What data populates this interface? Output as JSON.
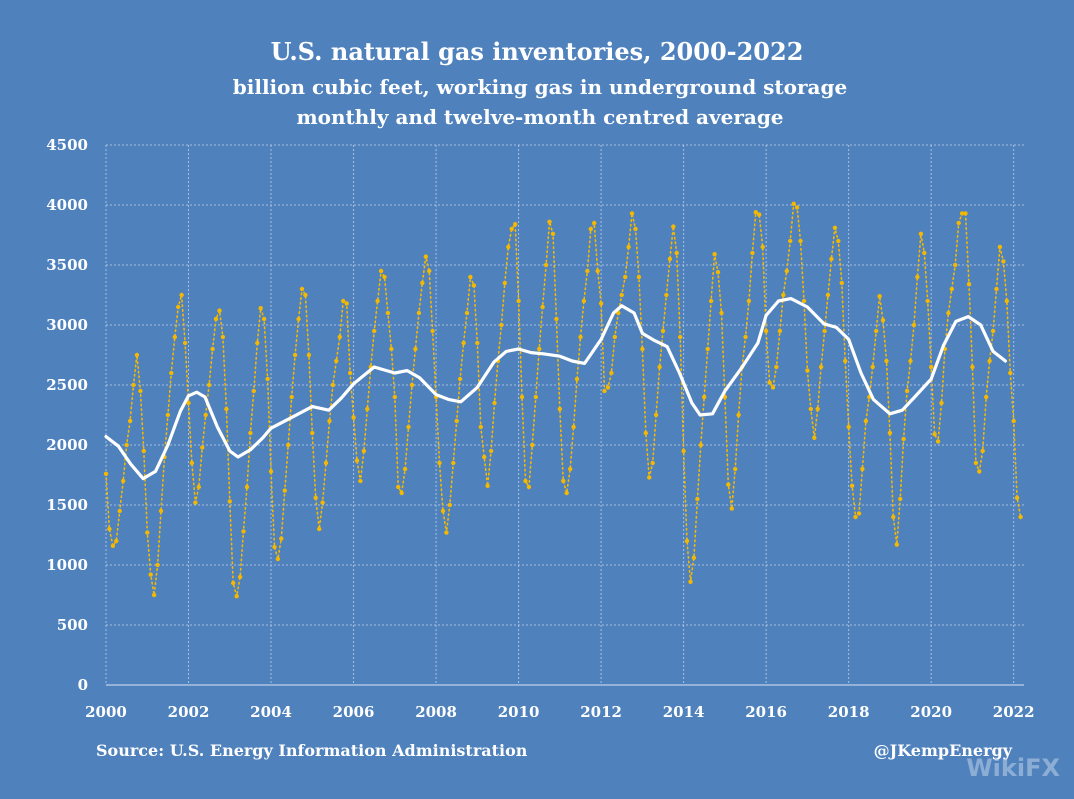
{
  "chart_data": {
    "type": "line",
    "title": "U.S. natural gas inventories, 2000-2022",
    "subtitle_lines": [
      "billion cubic feet, working gas in underground storage",
      "monthly and twelve-month centred average"
    ],
    "xlim": [
      2000,
      2022.25
    ],
    "ylim": [
      0,
      4500
    ],
    "x_ticks": [
      "2000",
      "2002",
      "2004",
      "2006",
      "2008",
      "2010",
      "2012",
      "2014",
      "2016",
      "2018",
      "2020",
      "2022"
    ],
    "y_ticks": [
      "0",
      "500",
      "1000",
      "1500",
      "2000",
      "2500",
      "3000",
      "3500",
      "4000",
      "4500"
    ],
    "grid": true,
    "legend": "none",
    "series": [
      {
        "style": "dotted",
        "color": "#f5b800",
        "x": [
          2000.0,
          2000.083,
          2000.167,
          2000.25,
          2000.333,
          2000.417,
          2000.5,
          2000.583,
          2000.667,
          2000.75,
          2000.833,
          2000.917,
          2001.0,
          2001.083,
          2001.167,
          2001.25,
          2001.333,
          2001.417,
          2001.5,
          2001.583,
          2001.667,
          2001.75,
          2001.833,
          2001.917,
          2002.0,
          2002.083,
          2002.167,
          2002.25,
          2002.333,
          2002.417,
          2002.5,
          2002.583,
          2002.667,
          2002.75,
          2002.833,
          2002.917,
          2003.0,
          2003.083,
          2003.167,
          2003.25,
          2003.333,
          2003.417,
          2003.5,
          2003.583,
          2003.667,
          2003.75,
          2003.833,
          2003.917,
          2004.0,
          2004.083,
          2004.167,
          2004.25,
          2004.333,
          2004.417,
          2004.5,
          2004.583,
          2004.667,
          2004.75,
          2004.833,
          2004.917,
          2005.0,
          2005.083,
          2005.167,
          2005.25,
          2005.333,
          2005.417,
          2005.5,
          2005.583,
          2005.667,
          2005.75,
          2005.833,
          2005.917,
          2006.0,
          2006.083,
          2006.167,
          2006.25,
          2006.333,
          2006.417,
          2006.5,
          2006.583,
          2006.667,
          2006.75,
          2006.833,
          2006.917,
          2007.0,
          2007.083,
          2007.167,
          2007.25,
          2007.333,
          2007.417,
          2007.5,
          2007.583,
          2007.667,
          2007.75,
          2007.833,
          2007.917,
          2008.0,
          2008.083,
          2008.167,
          2008.25,
          2008.333,
          2008.417,
          2008.5,
          2008.583,
          2008.667,
          2008.75,
          2008.833,
          2008.917,
          2009.0,
          2009.083,
          2009.167,
          2009.25,
          2009.333,
          2009.417,
          2009.5,
          2009.583,
          2009.667,
          2009.75,
          2009.833,
          2009.917,
          2010.0,
          2010.083,
          2010.167,
          2010.25,
          2010.333,
          2010.417,
          2010.5,
          2010.583,
          2010.667,
          2010.75,
          2010.833,
          2010.917,
          2011.0,
          2011.083,
          2011.167,
          2011.25,
          2011.333,
          2011.417,
          2011.5,
          2011.583,
          2011.667,
          2011.75,
          2011.833,
          2011.917,
          2012.0,
          2012.083,
          2012.167,
          2012.25,
          2012.333,
          2012.417,
          2012.5,
          2012.583,
          2012.667,
          2012.75,
          2012.833,
          2012.917,
          2013.0,
          2013.083,
          2013.167,
          2013.25,
          2013.333,
          2013.417,
          2013.5,
          2013.583,
          2013.667,
          2013.75,
          2013.833,
          2013.917,
          2014.0,
          2014.083,
          2014.167,
          2014.25,
          2014.333,
          2014.417,
          2014.5,
          2014.583,
          2014.667,
          2014.75,
          2014.833,
          2014.917,
          2015.0,
          2015.083,
          2015.167,
          2015.25,
          2015.333,
          2015.417,
          2015.5,
          2015.583,
          2015.667,
          2015.75,
          2015.833,
          2015.917,
          2016.0,
          2016.083,
          2016.167,
          2016.25,
          2016.333,
          2016.417,
          2016.5,
          2016.583,
          2016.667,
          2016.75,
          2016.833,
          2016.917,
          2017.0,
          2017.083,
          2017.167,
          2017.25,
          2017.333,
          2017.417,
          2017.5,
          2017.583,
          2017.667,
          2017.75,
          2017.833,
          2017.917,
          2018.0,
          2018.083,
          2018.167,
          2018.25,
          2018.333,
          2018.417,
          2018.5,
          2018.583,
          2018.667,
          2018.75,
          2018.833,
          2018.917,
          2019.0,
          2019.083,
          2019.167,
          2019.25,
          2019.333,
          2019.417,
          2019.5,
          2019.583,
          2019.667,
          2019.75,
          2019.833,
          2019.917,
          2020.0,
          2020.083,
          2020.167,
          2020.25,
          2020.333,
          2020.417,
          2020.5,
          2020.583,
          2020.667,
          2020.75,
          2020.833,
          2020.917,
          2021.0,
          2021.083,
          2021.167,
          2021.25,
          2021.333,
          2021.417,
          2021.5,
          2021.583,
          2021.667,
          2021.75,
          2021.833,
          2021.917,
          2022.0,
          2022.083,
          2022.167
        ],
        "values": [
          1760,
          1300,
          1160,
          1200,
          1450,
          1700,
          2000,
          2200,
          2500,
          2750,
          2450,
          1950,
          1270,
          920,
          750,
          1000,
          1450,
          1900,
          2250,
          2600,
          2900,
          3150,
          3250,
          2850,
          2350,
          1850,
          1520,
          1650,
          1980,
          2250,
          2500,
          2800,
          3050,
          3120,
          2900,
          2300,
          1530,
          850,
          740,
          900,
          1280,
          1650,
          2100,
          2450,
          2850,
          3140,
          3050,
          2550,
          1780,
          1150,
          1050,
          1220,
          1620,
          2000,
          2400,
          2750,
          3050,
          3300,
          3250,
          2750,
          2100,
          1560,
          1300,
          1520,
          1850,
          2200,
          2500,
          2700,
          2900,
          3200,
          3180,
          2600,
          2230,
          1870,
          1700,
          1950,
          2300,
          2650,
          2950,
          3200,
          3450,
          3400,
          3100,
          2800,
          2400,
          1650,
          1600,
          1800,
          2150,
          2500,
          2800,
          3100,
          3350,
          3570,
          3450,
          2950,
          2400,
          1850,
          1450,
          1270,
          1500,
          1850,
          2200,
          2550,
          2850,
          3100,
          3400,
          3330,
          2850,
          2150,
          1900,
          1660,
          1950,
          2350,
          2700,
          3000,
          3350,
          3650,
          3800,
          3840,
          3200,
          2400,
          1700,
          1650,
          2000,
          2400,
          2800,
          3150,
          3500,
          3860,
          3760,
          3050,
          2300,
          1700,
          1600,
          1800,
          2150,
          2550,
          2900,
          3200,
          3450,
          3800,
          3850,
          3450,
          3180,
          2450,
          2480,
          2600,
          2900,
          3100,
          3250,
          3400,
          3650,
          3930,
          3800,
          3400,
          2800,
          2100,
          1730,
          1850,
          2250,
          2650,
          2950,
          3250,
          3550,
          3820,
          3600,
          2900,
          1950,
          1200,
          860,
          1060,
          1550,
          2000,
          2400,
          2800,
          3200,
          3590,
          3440,
          3100,
          2400,
          1670,
          1470,
          1800,
          2250,
          2650,
          2900,
          3200,
          3600,
          3940,
          3920,
          3650,
          2950,
          2520,
          2480,
          2650,
          2950,
          3250,
          3450,
          3700,
          4010,
          3980,
          3700,
          3200,
          2620,
          2300,
          2060,
          2300,
          2650,
          2950,
          3250,
          3550,
          3810,
          3700,
          3350,
          2700,
          2150,
          1660,
          1400,
          1430,
          1800,
          2200,
          2400,
          2650,
          2950,
          3240,
          3040,
          2700,
          2100,
          1400,
          1170,
          1550,
          2050,
          2450,
          2700,
          3000,
          3400,
          3760,
          3600,
          3200,
          2650,
          2090,
          2030,
          2350,
          2800,
          3100,
          3300,
          3500,
          3850,
          3930,
          3930,
          3340,
          2650,
          1850,
          1780,
          1950,
          2400,
          2700,
          2950,
          3300,
          3650,
          3530,
          3200,
          2600,
          2200,
          1560,
          1400
        ]
      },
      {
        "style": "solid",
        "color": "#ffffff",
        "x": [
          2000.0,
          2000.3,
          2000.6,
          2000.9,
          2001.2,
          2001.5,
          2001.8,
          2002.0,
          2002.2,
          2002.4,
          2002.7,
          2003.0,
          2003.2,
          2003.5,
          2003.8,
          2004.0,
          2004.5,
          2005.0,
          2005.4,
          2005.7,
          2006.0,
          2006.5,
          2007.0,
          2007.3,
          2007.6,
          2008.0,
          2008.3,
          2008.6,
          2009.0,
          2009.4,
          2009.7,
          2010.0,
          2010.3,
          2010.6,
          2011.0,
          2011.3,
          2011.6,
          2012.0,
          2012.3,
          2012.5,
          2012.8,
          2013.0,
          2013.3,
          2013.6,
          2013.9,
          2014.2,
          2014.4,
          2014.7,
          2015.0,
          2015.4,
          2015.8,
          2016.0,
          2016.3,
          2016.6,
          2017.0,
          2017.4,
          2017.7,
          2018.0,
          2018.3,
          2018.6,
          2019.0,
          2019.3,
          2019.6,
          2020.0,
          2020.3,
          2020.6,
          2020.9,
          2021.2,
          2021.5,
          2021.8
        ],
        "values": [
          2070,
          1990,
          1840,
          1720,
          1780,
          2000,
          2280,
          2410,
          2440,
          2400,
          2150,
          1950,
          1900,
          1960,
          2060,
          2140,
          2230,
          2320,
          2290,
          2390,
          2510,
          2650,
          2600,
          2620,
          2560,
          2420,
          2380,
          2360,
          2480,
          2690,
          2780,
          2800,
          2770,
          2760,
          2740,
          2700,
          2680,
          2880,
          3100,
          3160,
          3100,
          2930,
          2870,
          2820,
          2600,
          2350,
          2250,
          2260,
          2450,
          2640,
          2850,
          3080,
          3200,
          3220,
          3150,
          3010,
          2980,
          2880,
          2600,
          2380,
          2260,
          2290,
          2400,
          2550,
          2830,
          3030,
          3070,
          3000,
          2780,
          2700
        ]
      }
    ],
    "source": "Source: U.S. Energy Information Administration",
    "credit": "@JKempEnergy"
  },
  "watermark": "WikiFX"
}
